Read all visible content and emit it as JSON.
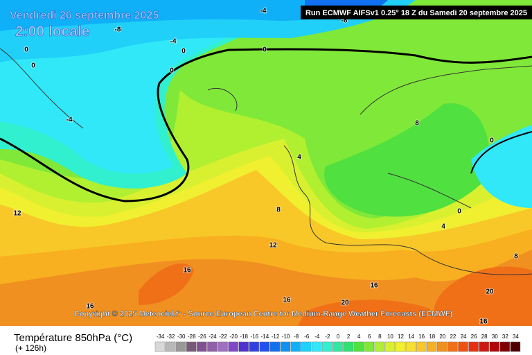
{
  "header": {
    "date": "Vendredi 26 septembre 2025",
    "time": "2:00 locale",
    "run": "Run ECMWF AIFSv1 0.25° 18 Z du Samedi 20 septembre 2025"
  },
  "copyright": "Copyright © 2025 Meteociel.fr - Source European Centre for Medium-Range Weather Forecasts (ECMWF)",
  "footer": {
    "title": "Température 850hPa (°C)",
    "lead": "(+ 126h)"
  },
  "legend": {
    "ticks": [
      -34,
      -32,
      -30,
      -28,
      -26,
      -24,
      -22,
      -20,
      -18,
      -16,
      -14,
      -12,
      -10,
      -8,
      -6,
      -4,
      -2,
      0,
      2,
      4,
      6,
      8,
      10,
      12,
      14,
      16,
      18,
      20,
      22,
      24,
      26,
      28,
      30,
      32,
      34
    ],
    "colors": [
      "#d8d8d8",
      "#b8b8b8",
      "#989898",
      "#785878",
      "#805090",
      "#9060a8",
      "#a070c0",
      "#8048c8",
      "#5030d0",
      "#3040e0",
      "#2050f0",
      "#1070f0",
      "#1090f0",
      "#10b0f8",
      "#20d0f8",
      "#30e8f8",
      "#30f0d0",
      "#30e8a0",
      "#30e070",
      "#50e040",
      "#80e838",
      "#b0f030",
      "#d8f030",
      "#f0f030",
      "#f8e030",
      "#f8c828",
      "#f8b020",
      "#f09020",
      "#f07018",
      "#f05010",
      "#e83010",
      "#d01810",
      "#b00808",
      "#800000",
      "#500000"
    ]
  },
  "contour_labels": [
    -8,
    -4,
    -8,
    -4,
    0,
    0,
    0,
    0,
    0,
    -4,
    4,
    8,
    0,
    8,
    12,
    16,
    0,
    4,
    8,
    16,
    16,
    20,
    20,
    16,
    16,
    12
  ]
}
